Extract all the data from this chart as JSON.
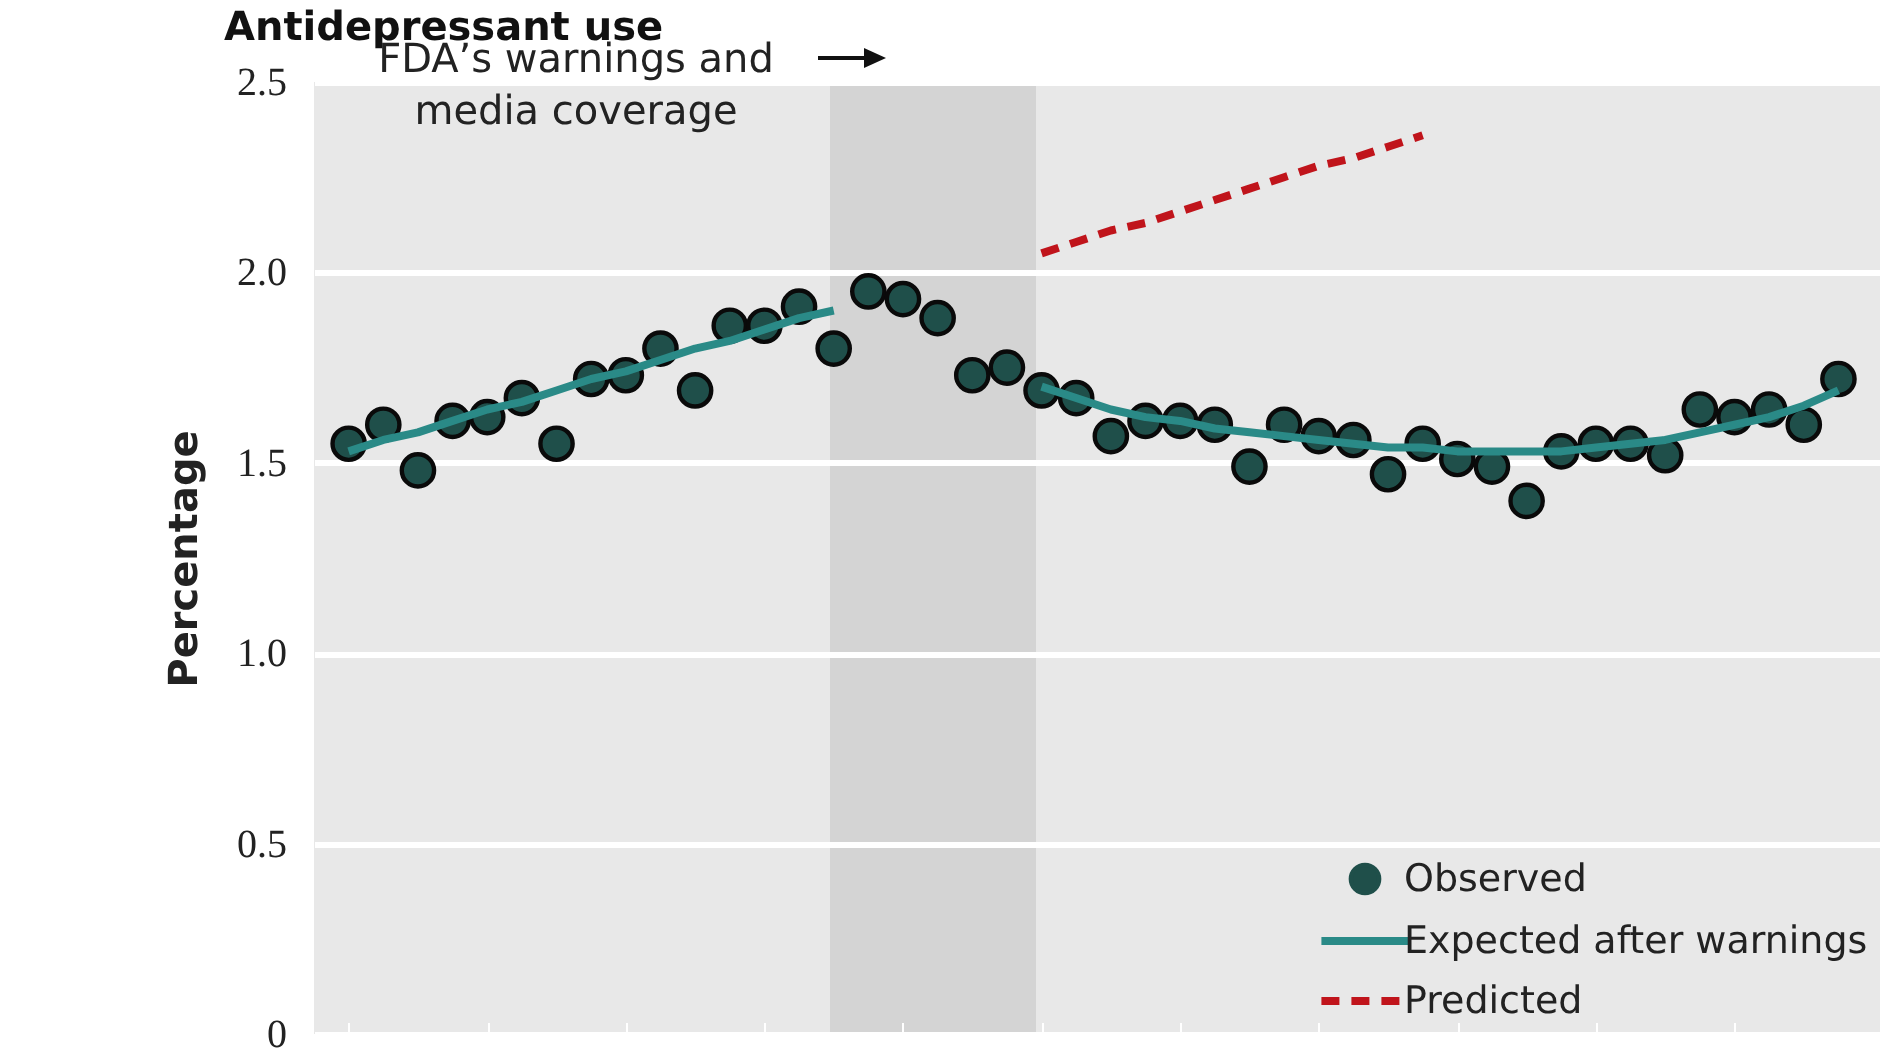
{
  "chart_data": {
    "type": "scatter",
    "title": "Antidepressant use",
    "ylabel": "Percentage",
    "categories": [
      null,
      null,
      null,
      null,
      null,
      null,
      null,
      null,
      null,
      null,
      null,
      null,
      null,
      null,
      null,
      null,
      null,
      null,
      null,
      null,
      null,
      null,
      null,
      null,
      null,
      null,
      null,
      null,
      null,
      null,
      null,
      null,
      null,
      null,
      null,
      null,
      null,
      null,
      null,
      null,
      null,
      null,
      null,
      null
    ],
    "ylim": [
      0,
      2.5
    ],
    "yticks": [
      0,
      0.5,
      {
        "value": 1,
        "label": "1.0"
      },
      {
        "value": 1.5,
        "label": "1.5"
      },
      {
        "value": 2,
        "label": "2.0"
      },
      2.5
    ],
    "tick_labels": "y",
    "grid": "y",
    "legend": "bottom right",
    "annotations": [
      "FDA’s warnings and\nmedia coverage"
    ],
    "series": [
      {
        "name": "Observed",
        "color": "#1f4f4a",
        "marker": "circle",
        "values": [
          1.55,
          1.6,
          1.48,
          1.61,
          1.62,
          1.67,
          1.55,
          1.72,
          1.73,
          1.8,
          1.69,
          1.86,
          1.86,
          1.91,
          1.8,
          1.95,
          1.93,
          1.88,
          1.73,
          1.75,
          1.69,
          1.67,
          1.57,
          1.61,
          1.61,
          1.6,
          1.49,
          1.6,
          1.57,
          1.56,
          1.47,
          1.55,
          1.51,
          1.49,
          1.4,
          1.53,
          1.55,
          1.55,
          1.52,
          1.64,
          1.62,
          1.64,
          1.6,
          1.72
        ]
      },
      {
        "name": "Expected after warnings",
        "type": "line",
        "color": "#2a8a87",
        "line_style": "solid",
        "values": [
          1.53,
          1.56,
          1.58,
          1.61,
          1.64,
          1.66,
          1.69,
          1.72,
          1.74,
          1.77,
          1.8,
          1.82,
          1.85,
          1.88,
          1.9,
          null,
          null,
          null,
          null,
          null,
          null,
          null,
          null,
          null,
          null,
          null,
          null,
          null,
          null,
          null,
          null,
          null,
          null,
          null,
          null,
          null,
          null,
          null,
          null,
          null,
          null,
          null,
          null,
          null
        ]
      },
      {
        "type": "line",
        "color": "#2a8a87",
        "line_style": "solid",
        "values": [
          null,
          null,
          null,
          null,
          null,
          null,
          null,
          null,
          null,
          null,
          null,
          null,
          null,
          null,
          null,
          null,
          null,
          null,
          null,
          null,
          1.7,
          1.67,
          1.64,
          1.62,
          1.61,
          1.59,
          1.58,
          1.57,
          1.56,
          1.55,
          1.54,
          1.54,
          1.53,
          1.53,
          1.53,
          1.53,
          1.54,
          1.55,
          1.56,
          1.58,
          1.6,
          1.62,
          1.65,
          1.69
        ]
      },
      {
        "name": "Predicted",
        "type": "line",
        "color": "#c0141b",
        "line_style": "dashed",
        "values": [
          null,
          null,
          null,
          null,
          null,
          null,
          null,
          null,
          null,
          null,
          null,
          null,
          null,
          null,
          null,
          null,
          null,
          null,
          null,
          null,
          2.05,
          2.08,
          2.11,
          2.13,
          2.16,
          2.19,
          2.22,
          2.25,
          2.28,
          2.3,
          2.33,
          2.36,
          null,
          null,
          null,
          null,
          null,
          null,
          null,
          null,
          null,
          null,
          null,
          null
        ]
      }
    ]
  }
}
